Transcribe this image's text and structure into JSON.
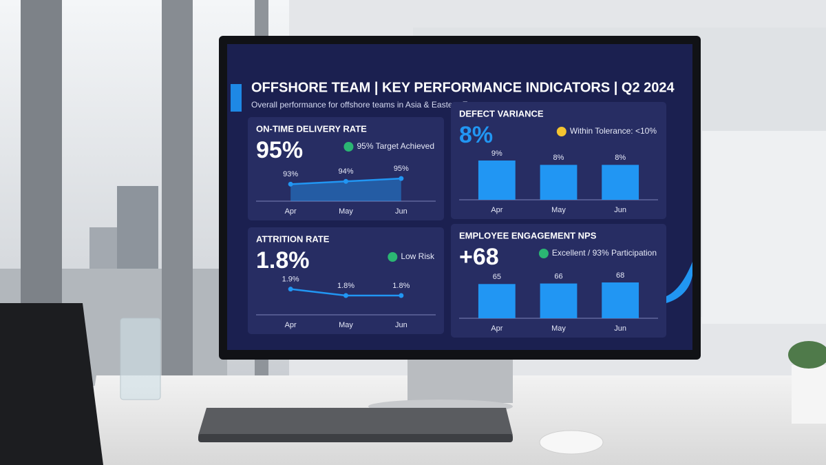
{
  "header": {
    "title": "OFFSHORE TEAM | KEY PERFORMANCE INDICATORS | Q2 2024",
    "subtitle": "Overall performance for offshore teams in Asia & Eastern Europe"
  },
  "chart_data": [
    {
      "type": "area",
      "title": "ON-TIME DELIVERY RATE",
      "headline": "95%",
      "headline_color": "#ffffff",
      "status": "95% Target Achieved",
      "status_color": "#2bb673",
      "categories": [
        "Apr",
        "May",
        "Jun"
      ],
      "values": [
        93,
        94,
        95
      ],
      "value_labels": [
        "93%",
        "94%",
        "95%"
      ],
      "color": "#2196f3"
    },
    {
      "type": "bar",
      "title": "DEFECT VARIANCE",
      "headline": "8%",
      "headline_color": "#2196f3",
      "status": "Within Tolerance: <10%",
      "status_color": "#f4c430",
      "categories": [
        "Apr",
        "May",
        "Jun"
      ],
      "values": [
        9,
        8,
        8
      ],
      "value_labels": [
        "9%",
        "8%",
        "8%"
      ],
      "color": "#2196f3"
    },
    {
      "type": "line",
      "title": "ATTRITION RATE",
      "headline": "1.8%",
      "headline_color": "#ffffff",
      "status": "Low Risk",
      "status_color": "#2bb673",
      "categories": [
        "Apr",
        "May",
        "Jun"
      ],
      "values": [
        1.9,
        1.8,
        1.8
      ],
      "value_labels": [
        "1.9%",
        "1.8%",
        "1.8%"
      ],
      "color": "#2196f3"
    },
    {
      "type": "bar",
      "title": "EMPLOYEE ENGAGEMENT NPS",
      "headline": "+68",
      "headline_color": "#ffffff",
      "status": "Excellent / 93% Participation",
      "status_color": "#2bb673",
      "categories": [
        "Apr",
        "May",
        "Jun"
      ],
      "values": [
        65,
        66,
        68
      ],
      "color": "#2196f3"
    }
  ]
}
